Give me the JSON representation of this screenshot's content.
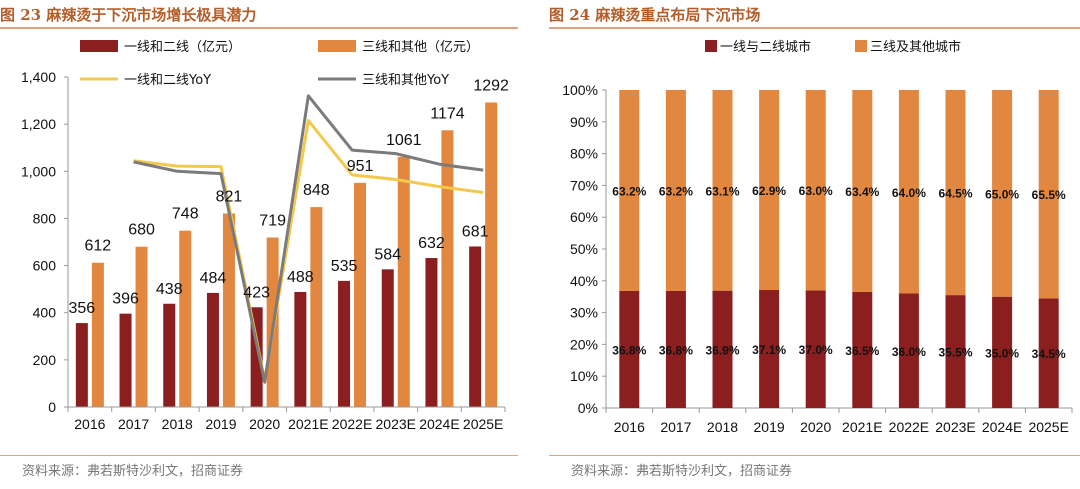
{
  "left": {
    "figure_title": "图 23 麻辣烫于下沉市场增长极具潜力",
    "source": "资料来源：弗若斯特沙利文，招商证券"
  },
  "right": {
    "figure_title": "图 24 麻辣烫重点布局下沉市场",
    "source": "资料来源：弗若斯特沙利文，招商证券"
  },
  "colors": {
    "dark_red": "#8b1e1e",
    "orange": "#e2873f",
    "yellow": "#f2c94c",
    "gray": "#7b7b7b",
    "accent": "#b35e2a"
  },
  "chart_data": [
    {
      "type": "bar",
      "title": "麻辣烫于下沉市场增长极具潜力",
      "categories": [
        "2016",
        "2017",
        "2018",
        "2019",
        "2020",
        "2021E",
        "2022E",
        "2023E",
        "2024E",
        "2025E"
      ],
      "ylim": [
        0,
        1400
      ],
      "yticks": [
        0,
        200,
        400,
        600,
        800,
        1000,
        1200,
        1400
      ],
      "ytick_labels": [
        "0",
        "200",
        "400",
        "600",
        "800",
        "1,000",
        "1,200",
        "1,400"
      ],
      "series": [
        {
          "name": "一线和二线（亿元）",
          "values": [
            356,
            396,
            438,
            484,
            423,
            488,
            535,
            584,
            632,
            681
          ],
          "labels": [
            "356",
            "396",
            "438",
            "484",
            "423",
            "488",
            "535",
            "584",
            "632",
            "681"
          ]
        },
        {
          "name": "三线和其他（亿元）",
          "values": [
            612,
            680,
            748,
            821,
            719,
            848,
            951,
            1061,
            1174,
            1292
          ],
          "labels": [
            "612",
            "680",
            "748",
            "821",
            "719",
            "848",
            "951",
            "1061",
            "1174",
            "1292"
          ]
        }
      ],
      "line_series": [
        {
          "name": "一线和二线YoY",
          "values": [
            null,
            1045,
            1022,
            1020,
            115,
            1215,
            985,
            965,
            935,
            910
          ]
        },
        {
          "name": "三线和其他YoY",
          "values": [
            null,
            1040,
            1000,
            990,
            105,
            1320,
            1090,
            1075,
            1030,
            1005
          ]
        }
      ]
    },
    {
      "type": "bar",
      "stacked": true,
      "title": "麻辣烫重点布局下沉市场",
      "categories": [
        "2016",
        "2017",
        "2018",
        "2019",
        "2020",
        "2021E",
        "2022E",
        "2023E",
        "2024E",
        "2025E"
      ],
      "ylim": [
        0,
        100
      ],
      "ytick_labels": [
        "0%",
        "10%",
        "20%",
        "30%",
        "40%",
        "50%",
        "60%",
        "70%",
        "80%",
        "90%",
        "100%"
      ],
      "series": [
        {
          "name": "一线与二线城市",
          "values": [
            36.8,
            36.8,
            36.9,
            37.1,
            37.0,
            36.5,
            36.0,
            35.5,
            35.0,
            34.5
          ],
          "labels": [
            "36.8%",
            "36.8%",
            "36.9%",
            "37.1%",
            "37.0%",
            "36.5%",
            "36.0%",
            "35.5%",
            "35.0%",
            "34.5%"
          ]
        },
        {
          "name": "三线及其他城市",
          "values": [
            63.2,
            63.2,
            63.1,
            62.9,
            63.0,
            63.4,
            64.0,
            64.5,
            65.0,
            65.5
          ],
          "labels": [
            "63.2%",
            "63.2%",
            "63.1%",
            "62.9%",
            "63.0%",
            "63.4%",
            "64.0%",
            "64.5%",
            "65.0%",
            "65.5%"
          ]
        }
      ]
    }
  ]
}
